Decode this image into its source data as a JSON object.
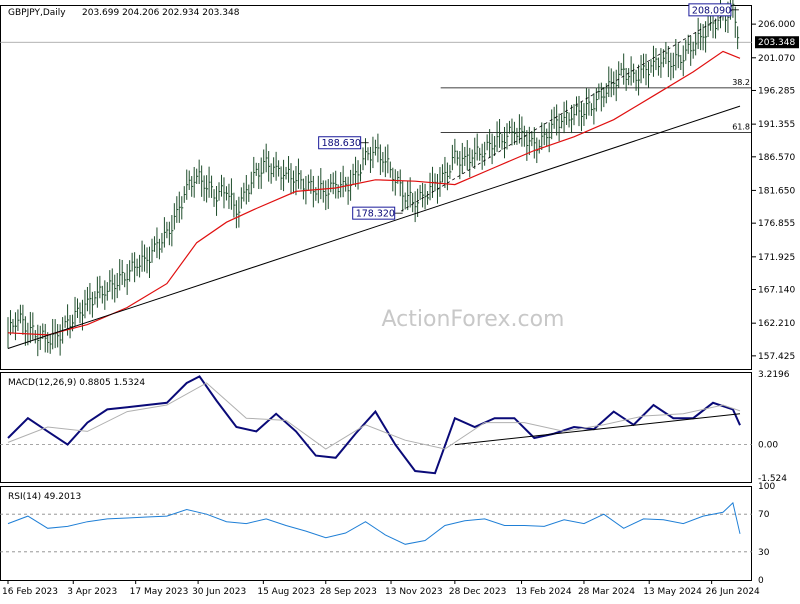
{
  "header": {
    "instrument": "GBPJPY,Daily",
    "ohlc": "203.699 204.206 202.934 203.348"
  },
  "watermark": "ActionForex.com",
  "colors": {
    "price": "#1e4d2b",
    "ema": "#e01010",
    "trendline": "#000000",
    "macd_main": "#0a0a78",
    "macd_signal": "#b0b0b0",
    "rsi": "#1f7fd6",
    "label_text": "#0a0a78",
    "label_border": "#1a1a9a"
  },
  "chart_data": [
    {
      "type": "line",
      "panel": "price",
      "chart_kind": "OHLC bars (Daily)",
      "y_ticks": [
        "206.000",
        "201.070",
        "196.285",
        "191.355",
        "186.570",
        "181.650",
        "176.855",
        "171.925",
        "167.140",
        "162.210",
        "157.425"
      ],
      "ylim": [
        155.5,
        208.8
      ],
      "current_price": "203.348",
      "annotations": [
        {
          "text": "208.090",
          "date": "2024-07-11",
          "value": 208.09
        },
        {
          "text": "188.630",
          "date": "2023-10-24",
          "value": 188.63
        },
        {
          "text": "178.320",
          "date": "2023-11-17",
          "value": 178.32
        }
      ],
      "fibonacci": [
        {
          "label": "38.2",
          "value": 196.66
        },
        {
          "label": "61.8",
          "value": 190.11
        }
      ],
      "series": [
        {
          "kind": "price",
          "points": [
            [
              "2023-02-16",
              160.8
            ],
            [
              "2023-02-23",
              163.2
            ],
            [
              "2023-03-02",
              161.5
            ],
            [
              "2023-03-09",
              160.5
            ],
            [
              "2023-03-16",
              159.8
            ],
            [
              "2023-03-23",
              160.2
            ],
            [
              "2023-03-30",
              162.0
            ],
            [
              "2023-04-06",
              163.5
            ],
            [
              "2023-04-13",
              165.0
            ],
            [
              "2023-04-20",
              166.5
            ],
            [
              "2023-04-27",
              167.2
            ],
            [
              "2023-05-04",
              168.5
            ],
            [
              "2023-05-11",
              169.5
            ],
            [
              "2023-05-18",
              171.0
            ],
            [
              "2023-05-25",
              171.5
            ],
            [
              "2023-06-01",
              173.5
            ],
            [
              "2023-06-08",
              175.0
            ],
            [
              "2023-06-15",
              178.0
            ],
            [
              "2023-06-22",
              182.0
            ],
            [
              "2023-06-29",
              183.8
            ],
            [
              "2023-07-06",
              182.5
            ],
            [
              "2023-07-13",
              181.0
            ],
            [
              "2023-07-20",
              182.0
            ],
            [
              "2023-07-27",
              178.5
            ],
            [
              "2023-08-03",
              181.5
            ],
            [
              "2023-08-10",
              184.0
            ],
            [
              "2023-08-17",
              185.5
            ],
            [
              "2023-08-24",
              184.5
            ],
            [
              "2023-08-31",
              184.0
            ],
            [
              "2023-09-07",
              183.5
            ],
            [
              "2023-09-14",
              182.5
            ],
            [
              "2023-09-21",
              182.0
            ],
            [
              "2023-09-28",
              181.5
            ],
            [
              "2023-10-05",
              182.5
            ],
            [
              "2023-10-12",
              182.0
            ],
            [
              "2023-10-19",
              183.5
            ],
            [
              "2023-10-26",
              186.5
            ],
            [
              "2023-11-02",
              187.5
            ],
            [
              "2023-11-09",
              186.0
            ],
            [
              "2023-11-16",
              183.5
            ],
            [
              "2023-11-23",
              181.0
            ],
            [
              "2023-11-30",
              180.0
            ],
            [
              "2023-12-07",
              181.0
            ],
            [
              "2023-12-14",
              182.5
            ],
            [
              "2023-12-21",
              183.5
            ],
            [
              "2023-12-28",
              186.5
            ],
            [
              "2024-01-04",
              186.0
            ],
            [
              "2024-01-11",
              187.0
            ],
            [
              "2024-01-18",
              187.5
            ],
            [
              "2024-01-25",
              189.0
            ],
            [
              "2024-02-01",
              189.5
            ],
            [
              "2024-02-08",
              190.5
            ],
            [
              "2024-02-15",
              189.5
            ],
            [
              "2024-02-22",
              188.0
            ],
            [
              "2024-02-29",
              189.0
            ],
            [
              "2024-03-07",
              191.5
            ],
            [
              "2024-03-14",
              192.0
            ],
            [
              "2024-03-21",
              193.0
            ],
            [
              "2024-03-28",
              193.5
            ],
            [
              "2024-04-04",
              194.5
            ],
            [
              "2024-04-11",
              196.0
            ],
            [
              "2024-04-18",
              197.5
            ],
            [
              "2024-04-25",
              199.0
            ],
            [
              "2024-05-02",
              198.0
            ],
            [
              "2024-05-09",
              199.0
            ],
            [
              "2024-05-16",
              200.0
            ],
            [
              "2024-05-23",
              201.0
            ],
            [
              "2024-05-30",
              200.5
            ],
            [
              "2024-06-06",
              201.5
            ],
            [
              "2024-06-13",
              203.0
            ],
            [
              "2024-06-20",
              204.5
            ],
            [
              "2024-06-27",
              206.0
            ],
            [
              "2024-07-04",
              207.0
            ],
            [
              "2024-07-11",
              208.0
            ],
            [
              "2024-07-16",
              203.3
            ]
          ]
        },
        {
          "kind": "moving_average",
          "points": [
            [
              "2023-02-16",
              160.8
            ],
            [
              "2023-03-16",
              160.5
            ],
            [
              "2023-04-13",
              162.0
            ],
            [
              "2023-05-11",
              164.5
            ],
            [
              "2023-06-08",
              168.0
            ],
            [
              "2023-06-29",
              174.0
            ],
            [
              "2023-07-20",
              177.0
            ],
            [
              "2023-08-10",
              179.0
            ],
            [
              "2023-09-07",
              181.5
            ],
            [
              "2023-10-05",
              182.0
            ],
            [
              "2023-11-02",
              183.2
            ],
            [
              "2023-11-30",
              183.0
            ],
            [
              "2023-12-28",
              182.5
            ],
            [
              "2024-01-25",
              185.0
            ],
            [
              "2024-02-22",
              187.5
            ],
            [
              "2024-03-21",
              189.5
            ],
            [
              "2024-04-18",
              192.0
            ],
            [
              "2024-05-16",
              195.5
            ],
            [
              "2024-06-13",
              199.0
            ],
            [
              "2024-07-04",
              202.0
            ],
            [
              "2024-07-16",
              201.0
            ]
          ]
        },
        {
          "kind": "trendline",
          "points": [
            [
              "2023-02-16",
              158.5
            ],
            [
              "2024-07-16",
              194.0
            ]
          ]
        },
        {
          "kind": "dashed_channel",
          "points": [
            [
              "2023-11-20",
              178.6
            ],
            [
              "2024-07-11",
              208.1
            ]
          ]
        }
      ]
    },
    {
      "type": "line",
      "panel": "macd",
      "label": "MACD(12,26,9) 0.8805 1.5324",
      "y_ticks": [
        "3.2196",
        "0.00",
        "-1.524"
      ],
      "ylim": [
        -1.7,
        3.3
      ],
      "series": [
        {
          "kind": "macd_main",
          "points": [
            [
              "2023-02-16",
              0.3
            ],
            [
              "2023-03-02",
              1.2
            ],
            [
              "2023-03-16",
              0.6
            ],
            [
              "2023-03-30",
              0.0
            ],
            [
              "2023-04-13",
              1.0
            ],
            [
              "2023-04-27",
              1.6
            ],
            [
              "2023-05-11",
              1.7
            ],
            [
              "2023-05-25",
              1.8
            ],
            [
              "2023-06-08",
              1.9
            ],
            [
              "2023-06-22",
              2.8
            ],
            [
              "2023-07-01",
              3.1
            ],
            [
              "2023-07-13",
              2.0
            ],
            [
              "2023-07-27",
              0.8
            ],
            [
              "2023-08-10",
              0.6
            ],
            [
              "2023-08-24",
              1.4
            ],
            [
              "2023-09-07",
              0.6
            ],
            [
              "2023-09-21",
              -0.5
            ],
            [
              "2023-10-05",
              -0.6
            ],
            [
              "2023-10-19",
              0.5
            ],
            [
              "2023-11-02",
              1.5
            ],
            [
              "2023-11-16",
              0.0
            ],
            [
              "2023-11-30",
              -1.2
            ],
            [
              "2023-12-14",
              -1.3
            ],
            [
              "2023-12-28",
              1.2
            ],
            [
              "2024-01-11",
              0.8
            ],
            [
              "2024-01-25",
              1.2
            ],
            [
              "2024-02-08",
              1.2
            ],
            [
              "2024-02-22",
              0.3
            ],
            [
              "2024-03-07",
              0.5
            ],
            [
              "2024-03-21",
              0.8
            ],
            [
              "2024-04-04",
              0.7
            ],
            [
              "2024-04-18",
              1.5
            ],
            [
              "2024-05-02",
              0.9
            ],
            [
              "2024-05-16",
              1.8
            ],
            [
              "2024-05-30",
              1.2
            ],
            [
              "2024-06-13",
              1.2
            ],
            [
              "2024-06-27",
              1.9
            ],
            [
              "2024-07-11",
              1.6
            ],
            [
              "2024-07-16",
              0.88
            ]
          ]
        },
        {
          "kind": "macd_signal",
          "points": [
            [
              "2023-02-16",
              0.1
            ],
            [
              "2023-03-16",
              0.8
            ],
            [
              "2023-04-13",
              0.6
            ],
            [
              "2023-05-11",
              1.5
            ],
            [
              "2023-06-08",
              1.8
            ],
            [
              "2023-07-06",
              2.8
            ],
            [
              "2023-08-03",
              1.2
            ],
            [
              "2023-08-31",
              1.1
            ],
            [
              "2023-09-28",
              -0.2
            ],
            [
              "2023-10-26",
              0.9
            ],
            [
              "2023-11-23",
              0.2
            ],
            [
              "2023-12-21",
              -0.2
            ],
            [
              "2024-01-18",
              1.0
            ],
            [
              "2024-02-15",
              1.0
            ],
            [
              "2024-03-14",
              0.6
            ],
            [
              "2024-04-11",
              0.9
            ],
            [
              "2024-05-09",
              1.3
            ],
            [
              "2024-06-06",
              1.4
            ],
            [
              "2024-07-04",
              1.8
            ],
            [
              "2024-07-16",
              1.53
            ]
          ]
        },
        {
          "kind": "trendline",
          "points": [
            [
              "2023-12-28",
              0.0
            ],
            [
              "2024-07-16",
              1.4
            ]
          ]
        }
      ]
    },
    {
      "type": "line",
      "panel": "rsi",
      "label": "RSI(14) 49.2013",
      "y_ticks": [
        "100",
        "70",
        "30",
        "0"
      ],
      "ylim": [
        0,
        100
      ],
      "levels": [
        70,
        30
      ],
      "series": [
        {
          "kind": "rsi",
          "points": [
            [
              "2023-02-16",
              60
            ],
            [
              "2023-03-02",
              68
            ],
            [
              "2023-03-16",
              55
            ],
            [
              "2023-03-30",
              57
            ],
            [
              "2023-04-13",
              62
            ],
            [
              "2023-04-27",
              65
            ],
            [
              "2023-05-11",
              66
            ],
            [
              "2023-05-25",
              67
            ],
            [
              "2023-06-08",
              68
            ],
            [
              "2023-06-22",
              75
            ],
            [
              "2023-07-06",
              70
            ],
            [
              "2023-07-20",
              62
            ],
            [
              "2023-08-03",
              60
            ],
            [
              "2023-08-17",
              65
            ],
            [
              "2023-08-31",
              58
            ],
            [
              "2023-09-14",
              52
            ],
            [
              "2023-09-28",
              45
            ],
            [
              "2023-10-12",
              50
            ],
            [
              "2023-10-26",
              62
            ],
            [
              "2023-11-09",
              48
            ],
            [
              "2023-11-23",
              38
            ],
            [
              "2023-12-07",
              42
            ],
            [
              "2023-12-21",
              58
            ],
            [
              "2024-01-04",
              63
            ],
            [
              "2024-01-18",
              65
            ],
            [
              "2024-02-01",
              58
            ],
            [
              "2024-02-15",
              58
            ],
            [
              "2024-02-29",
              57
            ],
            [
              "2024-03-14",
              64
            ],
            [
              "2024-03-28",
              60
            ],
            [
              "2024-04-11",
              70
            ],
            [
              "2024-04-25",
              55
            ],
            [
              "2024-05-09",
              65
            ],
            [
              "2024-05-23",
              64
            ],
            [
              "2024-06-06",
              60
            ],
            [
              "2024-06-20",
              68
            ],
            [
              "2024-07-04",
              72
            ],
            [
              "2024-07-11",
              82
            ],
            [
              "2024-07-16",
              49.2
            ]
          ]
        }
      ]
    }
  ],
  "x_axis": {
    "labels": [
      {
        "text": "16 Feb 2023",
        "date": "2023-02-16"
      },
      {
        "text": "3 Apr 2023",
        "date": "2023-04-03"
      },
      {
        "text": "17 May 2023",
        "date": "2023-05-17"
      },
      {
        "text": "30 Jun 2023",
        "date": "2023-06-30"
      },
      {
        "text": "15 Aug 2023",
        "date": "2023-08-15"
      },
      {
        "text": "28 Sep 2023",
        "date": "2023-09-28"
      },
      {
        "text": "13 Nov 2023",
        "date": "2023-11-13"
      },
      {
        "text": "28 Dec 2023",
        "date": "2023-12-28"
      },
      {
        "text": "13 Feb 2024",
        "date": "2024-02-13"
      },
      {
        "text": "28 Mar 2024",
        "date": "2024-03-28"
      },
      {
        "text": "13 May 2024",
        "date": "2024-05-13"
      },
      {
        "text": "26 Jun 2024",
        "date": "2024-06-26"
      }
    ]
  }
}
